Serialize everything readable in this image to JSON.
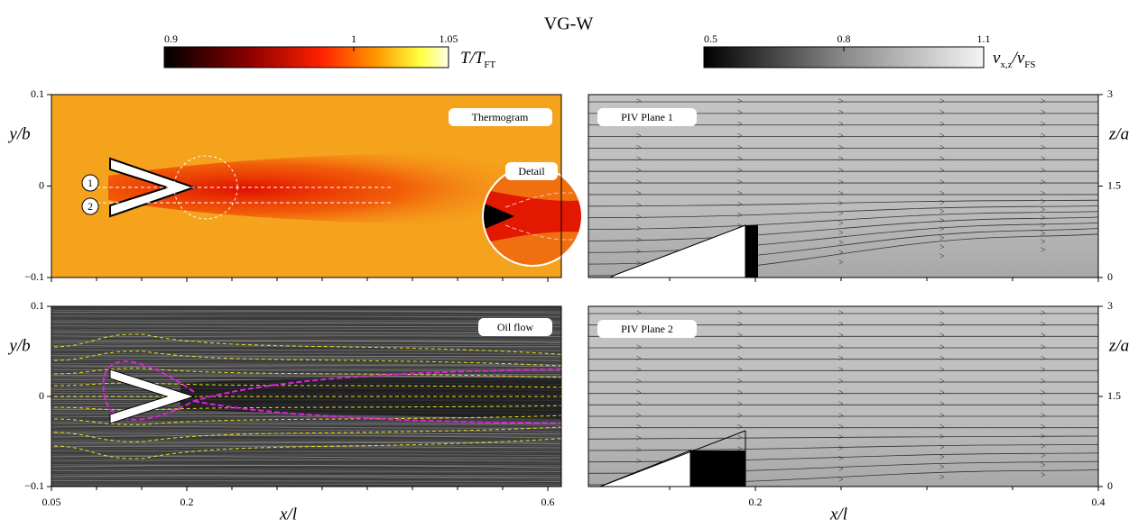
{
  "title": "VG-W",
  "colorbars": [
    {
      "label": [
        "T/T",
        "FT"
      ],
      "lim": [
        0.9,
        1.05
      ],
      "ticks": [
        0.9,
        1,
        1.05
      ]
    },
    {
      "label": [
        "v",
        "x,z",
        "/v",
        "FS"
      ],
      "lim": [
        0.5,
        1.1
      ],
      "ticks": [
        0.5,
        0.8,
        1.1
      ]
    }
  ],
  "left_axes": {
    "xlabel": "x/l",
    "ylabel": "y/b",
    "xlim": [
      0.05,
      0.615
    ],
    "xticks": [
      0.05,
      0.2,
      0.6
    ],
    "xminor": [
      0.1,
      0.15,
      0.25,
      0.3,
      0.35,
      0.4,
      0.45,
      0.5,
      0.55
    ],
    "ylim": [
      -0.1,
      0.1
    ],
    "yticks": [
      {
        "value": -0.1,
        "label": "−0.1"
      },
      0,
      0.1
    ]
  },
  "right_axes": {
    "xlabel": "x/l",
    "ylabel": "z/a",
    "xlim": [
      0.1026,
      0.4
    ],
    "xticks": [
      0.2,
      0.4
    ],
    "xminor": [
      0.15,
      0.25,
      0.3,
      0.35
    ],
    "ylim": [
      0,
      3
    ],
    "yticks": [
      0,
      1.5,
      3
    ]
  },
  "panels": {
    "thermogram": "Thermogram",
    "detail": "Detail",
    "oil_flow": "Oil flow",
    "piv1": "PIV Plane 1",
    "piv2": "PIV Plane 2"
  },
  "line_markers": [
    "1",
    "2"
  ]
}
